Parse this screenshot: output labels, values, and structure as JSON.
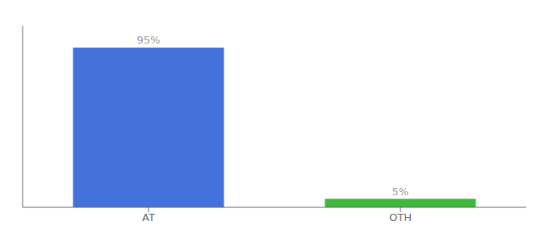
{
  "chart_data": {
    "type": "bar",
    "categories": [
      "AT",
      "OTH"
    ],
    "values": [
      95,
      5
    ],
    "value_labels": [
      "95%",
      "5%"
    ],
    "colors": [
      "#4472db",
      "#3cb83c"
    ],
    "ylim": [
      0,
      108
    ],
    "data_labels": true,
    "grid": false,
    "tick_labels": "x"
  }
}
